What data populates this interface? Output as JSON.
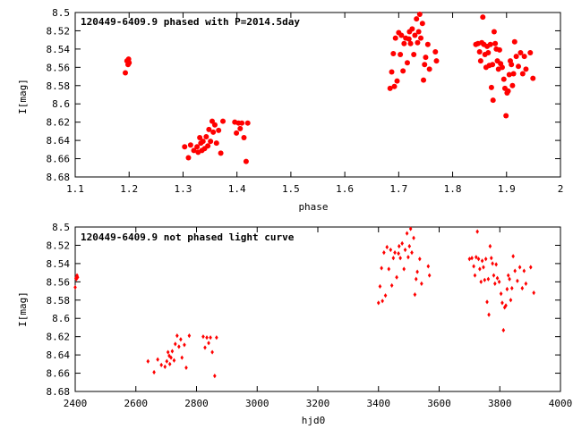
{
  "chart_data": [
    {
      "type": "scatter",
      "title": "120449-6409.9 phased with P=2014.5day",
      "xlabel": "phase",
      "ylabel": "I[mag]",
      "xlim": [
        1.1,
        2.0
      ],
      "ylim": [
        8.5,
        8.68
      ],
      "y_inverted": true,
      "x_ticks": [
        "1.1",
        "1.2",
        "1.3",
        "1.4",
        "1.5",
        "1.6",
        "1.7",
        "1.8",
        "1.9",
        "2"
      ],
      "y_ticks": [
        "8.5",
        "8.52",
        "8.54",
        "8.56",
        "8.58",
        "8.6",
        "8.62",
        "8.64",
        "8.66",
        "8.68"
      ],
      "grid": false,
      "legend": "none",
      "marker": "filled-circle",
      "color": "#ff0000",
      "points": [
        [
          1.193,
          8.566
        ],
        [
          1.196,
          8.553
        ],
        [
          1.198,
          8.557
        ],
        [
          1.199,
          8.551
        ],
        [
          1.2,
          8.555
        ],
        [
          1.303,
          8.647
        ],
        [
          1.31,
          8.659
        ],
        [
          1.314,
          8.645
        ],
        [
          1.32,
          8.651
        ],
        [
          1.326,
          8.647
        ],
        [
          1.328,
          8.653
        ],
        [
          1.331,
          8.637
        ],
        [
          1.333,
          8.643
        ],
        [
          1.335,
          8.651
        ],
        [
          1.337,
          8.641
        ],
        [
          1.34,
          8.649
        ],
        [
          1.343,
          8.636
        ],
        [
          1.346,
          8.646
        ],
        [
          1.348,
          8.628
        ],
        [
          1.351,
          8.641
        ],
        [
          1.354,
          8.619
        ],
        [
          1.356,
          8.631
        ],
        [
          1.359,
          8.623
        ],
        [
          1.362,
          8.643
        ],
        [
          1.366,
          8.629
        ],
        [
          1.37,
          8.654
        ],
        [
          1.374,
          8.619
        ],
        [
          1.396,
          8.62
        ],
        [
          1.399,
          8.632
        ],
        [
          1.403,
          8.621
        ],
        [
          1.406,
          8.627
        ],
        [
          1.409,
          8.621
        ],
        [
          1.413,
          8.637
        ],
        [
          1.417,
          8.663
        ],
        [
          1.42,
          8.621
        ],
        [
          1.684,
          8.583
        ],
        [
          1.687,
          8.565
        ],
        [
          1.69,
          8.545
        ],
        [
          1.692,
          8.581
        ],
        [
          1.694,
          8.528
        ],
        [
          1.697,
          8.575
        ],
        [
          1.7,
          8.522
        ],
        [
          1.703,
          8.546
        ],
        [
          1.705,
          8.525
        ],
        [
          1.708,
          8.564
        ],
        [
          1.71,
          8.534
        ],
        [
          1.713,
          8.528
        ],
        [
          1.716,
          8.555
        ],
        [
          1.719,
          8.529
        ],
        [
          1.72,
          8.521
        ],
        [
          1.722,
          8.534
        ],
        [
          1.725,
          8.518
        ],
        [
          1.728,
          8.546
        ],
        [
          1.73,
          8.525
        ],
        [
          1.733,
          8.507
        ],
        [
          1.735,
          8.533
        ],
        [
          1.737,
          8.521
        ],
        [
          1.739,
          8.502
        ],
        [
          1.741,
          8.528
        ],
        [
          1.744,
          8.512
        ],
        [
          1.746,
          8.574
        ],
        [
          1.748,
          8.557
        ],
        [
          1.75,
          8.549
        ],
        [
          1.754,
          8.535
        ],
        [
          1.757,
          8.562
        ],
        [
          1.768,
          8.543
        ],
        [
          1.77,
          8.553
        ],
        [
          1.843,
          8.535
        ],
        [
          1.847,
          8.534
        ],
        [
          1.85,
          8.543
        ],
        [
          1.852,
          8.553
        ],
        [
          1.854,
          8.533
        ],
        [
          1.856,
          8.505
        ],
        [
          1.858,
          8.535
        ],
        [
          1.86,
          8.546
        ],
        [
          1.862,
          8.56
        ],
        [
          1.864,
          8.537
        ],
        [
          1.866,
          8.544
        ],
        [
          1.868,
          8.558
        ],
        [
          1.87,
          8.535
        ],
        [
          1.872,
          8.582
        ],
        [
          1.874,
          8.557
        ],
        [
          1.875,
          8.596
        ],
        [
          1.877,
          8.521
        ],
        [
          1.879,
          8.534
        ],
        [
          1.881,
          8.54
        ],
        [
          1.883,
          8.553
        ],
        [
          1.885,
          8.562
        ],
        [
          1.887,
          8.541
        ],
        [
          1.889,
          8.556
        ],
        [
          1.892,
          8.56
        ],
        [
          1.895,
          8.573
        ],
        [
          1.897,
          8.583
        ],
        [
          1.899,
          8.613
        ],
        [
          1.901,
          8.588
        ],
        [
          1.903,
          8.586
        ],
        [
          1.905,
          8.568
        ],
        [
          1.907,
          8.553
        ],
        [
          1.909,
          8.557
        ],
        [
          1.911,
          8.58
        ],
        [
          1.913,
          8.567
        ],
        [
          1.915,
          8.532
        ],
        [
          1.918,
          8.548
        ],
        [
          1.922,
          8.559
        ],
        [
          1.926,
          8.544
        ],
        [
          1.93,
          8.567
        ],
        [
          1.933,
          8.548
        ],
        [
          1.936,
          8.562
        ],
        [
          1.944,
          8.544
        ],
        [
          1.949,
          8.572
        ]
      ]
    },
    {
      "type": "scatter",
      "title": "120449-6409.9 not phased light curve",
      "xlabel": "hjd0",
      "ylabel": "I[mag]",
      "xlim": [
        2400,
        4000
      ],
      "ylim": [
        8.5,
        8.68
      ],
      "y_inverted": true,
      "x_ticks": [
        "2400",
        "2600",
        "2800",
        "3000",
        "3200",
        "3400",
        "3600",
        "3800",
        "4000"
      ],
      "y_ticks": [
        "8.5",
        "8.52",
        "8.54",
        "8.56",
        "8.58",
        "8.6",
        "8.62",
        "8.64",
        "8.66",
        "8.68"
      ],
      "grid": false,
      "legend": "none",
      "marker": "small-diamond",
      "color": "#ff0000",
      "points": [
        [
          2400,
          8.566
        ],
        [
          2402,
          8.556
        ],
        [
          2404,
          8.557
        ],
        [
          2406,
          8.553
        ],
        [
          2408,
          8.555
        ],
        [
          2640,
          8.647
        ],
        [
          2660,
          8.659
        ],
        [
          2672,
          8.645
        ],
        [
          2684,
          8.651
        ],
        [
          2696,
          8.653
        ],
        [
          2702,
          8.647
        ],
        [
          2706,
          8.637
        ],
        [
          2710,
          8.641
        ],
        [
          2712,
          8.65
        ],
        [
          2716,
          8.643
        ],
        [
          2720,
          8.636
        ],
        [
          2726,
          8.646
        ],
        [
          2730,
          8.628
        ],
        [
          2736,
          8.619
        ],
        [
          2742,
          8.631
        ],
        [
          2748,
          8.623
        ],
        [
          2752,
          8.643
        ],
        [
          2760,
          8.629
        ],
        [
          2766,
          8.654
        ],
        [
          2776,
          8.619
        ],
        [
          2822,
          8.62
        ],
        [
          2828,
          8.632
        ],
        [
          2834,
          8.621
        ],
        [
          2840,
          8.627
        ],
        [
          2846,
          8.621
        ],
        [
          2852,
          8.637
        ],
        [
          2860,
          8.663
        ],
        [
          2866,
          8.621
        ],
        [
          3400,
          8.583
        ],
        [
          3405,
          8.565
        ],
        [
          3410,
          8.545
        ],
        [
          3413,
          8.581
        ],
        [
          3418,
          8.528
        ],
        [
          3423,
          8.575
        ],
        [
          3428,
          8.522
        ],
        [
          3434,
          8.546
        ],
        [
          3440,
          8.525
        ],
        [
          3444,
          8.564
        ],
        [
          3449,
          8.534
        ],
        [
          3454,
          8.528
        ],
        [
          3460,
          8.555
        ],
        [
          3466,
          8.529
        ],
        [
          3468,
          8.521
        ],
        [
          3472,
          8.534
        ],
        [
          3478,
          8.518
        ],
        [
          3484,
          8.546
        ],
        [
          3488,
          8.525
        ],
        [
          3494,
          8.507
        ],
        [
          3498,
          8.533
        ],
        [
          3502,
          8.521
        ],
        [
          3506,
          8.502
        ],
        [
          3510,
          8.528
        ],
        [
          3516,
          8.512
        ],
        [
          3520,
          8.574
        ],
        [
          3524,
          8.557
        ],
        [
          3528,
          8.549
        ],
        [
          3536,
          8.535
        ],
        [
          3542,
          8.562
        ],
        [
          3564,
          8.543
        ],
        [
          3568,
          8.553
        ],
        [
          3700,
          8.535
        ],
        [
          3708,
          8.534
        ],
        [
          3714,
          8.543
        ],
        [
          3718,
          8.553
        ],
        [
          3722,
          8.533
        ],
        [
          3726,
          8.505
        ],
        [
          3730,
          8.535
        ],
        [
          3734,
          8.546
        ],
        [
          3738,
          8.56
        ],
        [
          3742,
          8.537
        ],
        [
          3746,
          8.544
        ],
        [
          3750,
          8.558
        ],
        [
          3754,
          8.535
        ],
        [
          3758,
          8.582
        ],
        [
          3762,
          8.557
        ],
        [
          3764,
          8.596
        ],
        [
          3768,
          8.521
        ],
        [
          3772,
          8.534
        ],
        [
          3776,
          8.54
        ],
        [
          3780,
          8.553
        ],
        [
          3784,
          8.562
        ],
        [
          3788,
          8.541
        ],
        [
          3792,
          8.556
        ],
        [
          3798,
          8.56
        ],
        [
          3804,
          8.573
        ],
        [
          3808,
          8.583
        ],
        [
          3812,
          8.613
        ],
        [
          3816,
          8.588
        ],
        [
          3820,
          8.586
        ],
        [
          3824,
          8.568
        ],
        [
          3828,
          8.553
        ],
        [
          3832,
          8.557
        ],
        [
          3836,
          8.58
        ],
        [
          3840,
          8.567
        ],
        [
          3844,
          8.532
        ],
        [
          3850,
          8.548
        ],
        [
          3858,
          8.559
        ],
        [
          3866,
          8.544
        ],
        [
          3874,
          8.567
        ],
        [
          3880,
          8.548
        ],
        [
          3886,
          8.562
        ],
        [
          3902,
          8.544
        ],
        [
          3912,
          8.572
        ]
      ]
    }
  ]
}
